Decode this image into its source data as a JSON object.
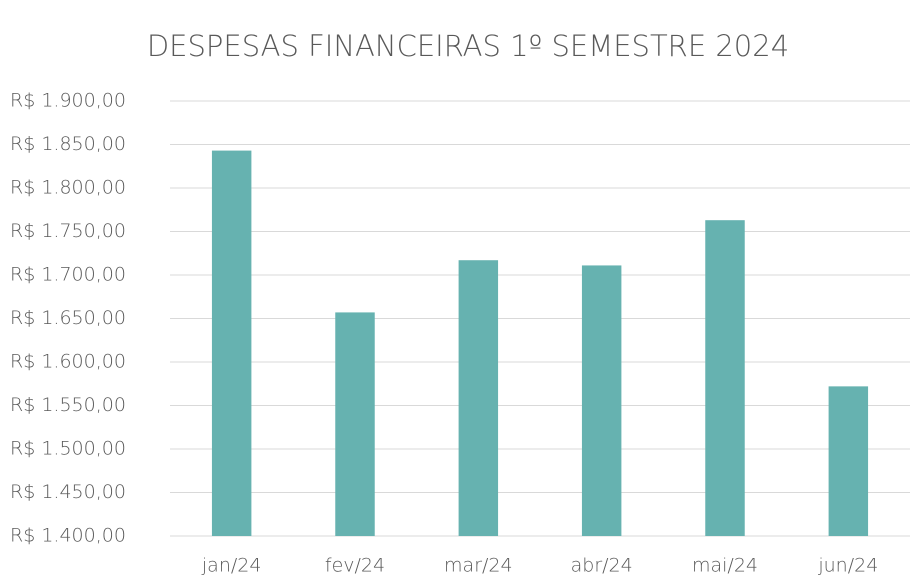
{
  "chart_data": {
    "type": "bar",
    "title": "DESPESAS FINANCEIRAS 1º SEMESTRE 2024",
    "categories": [
      "jan/24",
      "fev/24",
      "mar/24",
      "abr/24",
      "mai/24",
      "jun/24"
    ],
    "values": [
      1843,
      1657,
      1717,
      1711,
      1763,
      1572
    ],
    "color": "#66b2b0",
    "ylim": [
      1400,
      1900
    ],
    "yticks": [
      {
        "value": 1400,
        "label": "R$ 1.400,00"
      },
      {
        "value": 1450,
        "label": "R$ 1.450,00"
      },
      {
        "value": 1500,
        "label": "R$ 1.500,00"
      },
      {
        "value": 1550,
        "label": "R$ 1.550,00"
      },
      {
        "value": 1600,
        "label": "R$ 1.600,00"
      },
      {
        "value": 1650,
        "label": "R$ 1.650,00"
      },
      {
        "value": 1700,
        "label": "R$ 1.700,00"
      },
      {
        "value": 1750,
        "label": "R$ 1.750,00"
      },
      {
        "value": 1800,
        "label": "R$ 1.800,00"
      },
      {
        "value": 1850,
        "label": "R$ 1.850,00"
      },
      {
        "value": 1900,
        "label": "R$ 1.900,00"
      }
    ],
    "grid": true
  }
}
